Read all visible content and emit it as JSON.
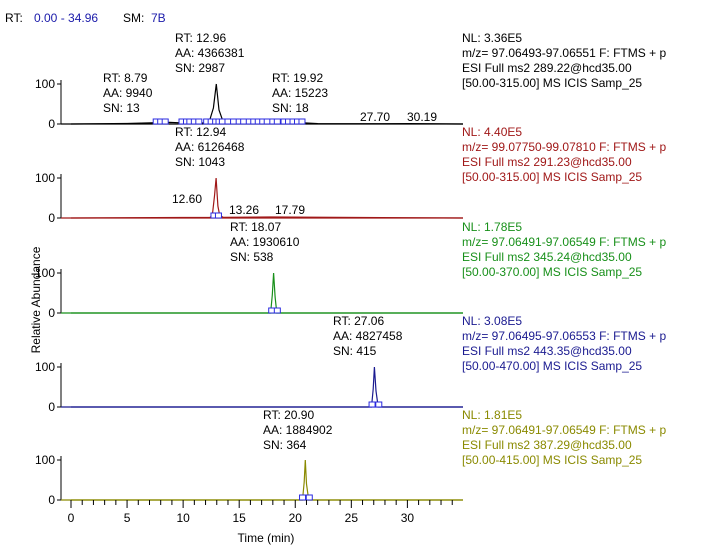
{
  "header": {
    "rt_prefix": "RT:",
    "rt_range": "0.00 - 34.96",
    "sm_prefix": "SM:",
    "sm_value": "7B"
  },
  "colors": {
    "blue_text": "#1a1aaa",
    "marker": "#2a2ae0",
    "smooth": "#40a040"
  },
  "chart_data": {
    "type": "line",
    "title": "",
    "xlabel": "Time (min)",
    "ylabel": "Relative Abundance",
    "xlim": [
      0,
      34.96
    ],
    "xticks": [
      0,
      5,
      10,
      15,
      20,
      25,
      30
    ],
    "ylim": [
      0,
      100
    ],
    "yticks": [
      0,
      100
    ],
    "panels": [
      {
        "color": "#000000",
        "header": [
          "NL: 3.36E5",
          "m/z= 97.06493-97.06551 F: FTMS + p",
          "ESI Full ms2 289.22@hcd35.00",
          "[50.00-315.00]  MS  ICIS Samp_25"
        ],
        "points": [
          [
            0,
            0
          ],
          [
            5.0,
            1.2
          ],
          [
            8.79,
            4.0
          ],
          [
            10.5,
            2.0
          ],
          [
            12.3,
            3.0
          ],
          [
            12.7,
            40
          ],
          [
            12.96,
            100
          ],
          [
            13.2,
            35
          ],
          [
            13.6,
            3
          ],
          [
            15.5,
            2.0
          ],
          [
            19.92,
            4.0
          ],
          [
            22,
            1.0
          ],
          [
            27.7,
            0.8
          ],
          [
            30.19,
            1.0
          ],
          [
            34.96,
            0
          ]
        ],
        "markers": [
          7.6,
          8.0,
          8.4,
          9.9,
          10.3,
          10.6,
          11.0,
          11.4,
          12.1,
          12.5,
          12.9,
          13.2,
          13.5,
          14.0,
          14.5,
          15.0,
          15.4,
          15.9,
          16.3,
          16.7,
          17.1,
          17.5,
          18.0,
          18.4,
          19.0,
          19.4,
          19.8,
          20.2,
          20.6
        ],
        "peaks": [
          {
            "rt": "RT: 8.79",
            "aa": "AA: 9940",
            "sn": "SN: 13"
          },
          {
            "rt": "RT: 12.96",
            "aa": "AA: 4366381",
            "sn": "SN: 2987"
          },
          {
            "rt": "RT: 19.92",
            "aa": "AA: 15223",
            "sn": "SN: 18"
          }
        ],
        "extra": [
          "27.70",
          "30.19"
        ]
      },
      {
        "color": "#a01818",
        "header": [
          "NL: 4.40E5",
          "m/z= 99.07750-99.07810 F: FTMS + p",
          "ESI Full ms2 291.23@hcd35.00",
          "[50.00-315.00]  MS  ICIS Samp_25"
        ],
        "points": [
          [
            0,
            0
          ],
          [
            12.4,
            1.5
          ],
          [
            12.6,
            6
          ],
          [
            12.8,
            55
          ],
          [
            12.94,
            100
          ],
          [
            13.1,
            30
          ],
          [
            13.26,
            6
          ],
          [
            13.6,
            1.5
          ],
          [
            17.79,
            2.5
          ],
          [
            34.96,
            0
          ]
        ],
        "markers": [
          12.75,
          13.15
        ],
        "peaks": [
          {
            "rt": "RT: 12.94",
            "aa": "AA: 6126468",
            "sn": "SN: 1043"
          }
        ],
        "extra": [
          "12.60",
          "13.26",
          "17.79"
        ]
      },
      {
        "color": "#18901a",
        "header": [
          "NL: 1.78E5",
          "m/z= 97.06491-97.06549 F: FTMS + p",
          "ESI Full ms2 345.24@hcd35.00",
          "[50.00-370.00]  MS  ICIS Samp_25"
        ],
        "points": [
          [
            0,
            0
          ],
          [
            17.8,
            0
          ],
          [
            17.95,
            45
          ],
          [
            18.07,
            100
          ],
          [
            18.2,
            40
          ],
          [
            18.35,
            0
          ],
          [
            34.96,
            0
          ]
        ],
        "markers": [
          17.9,
          18.4
        ],
        "peaks": [
          {
            "rt": "RT: 18.07",
            "aa": "AA: 1930610",
            "sn": "SN: 538"
          }
        ],
        "extra": []
      },
      {
        "color": "#1a1a90",
        "header": [
          "NL: 3.08E5",
          "m/z= 97.06495-97.06553 F: FTMS + p",
          "ESI Full ms2 443.35@hcd35.00",
          "[50.00-470.00]  MS  ICIS Samp_25"
        ],
        "points": [
          [
            0,
            0
          ],
          [
            26.8,
            0
          ],
          [
            26.95,
            45
          ],
          [
            27.06,
            100
          ],
          [
            27.2,
            40
          ],
          [
            27.4,
            0
          ],
          [
            34.96,
            0
          ]
        ],
        "markers": [
          26.85,
          27.45
        ],
        "peaks": [
          {
            "rt": "RT: 27.06",
            "aa": "AA: 4827458",
            "sn": "SN: 415"
          }
        ],
        "extra": []
      },
      {
        "color": "#8a8a00",
        "header": [
          "NL: 1.81E5",
          "m/z= 97.06491-97.06549 F: FTMS + p",
          "ESI Full ms2 387.29@hcd35.00",
          "[50.00-415.00]  MS  ICIS Samp_25"
        ],
        "points": [
          [
            0,
            0
          ],
          [
            20.65,
            0
          ],
          [
            20.8,
            45
          ],
          [
            20.9,
            100
          ],
          [
            21.0,
            40
          ],
          [
            21.2,
            0
          ],
          [
            34.96,
            0
          ]
        ],
        "markers": [
          20.65,
          21.25
        ],
        "peaks": [
          {
            "rt": "RT: 20.90",
            "aa": "AA: 1884902",
            "sn": "SN: 364"
          }
        ],
        "extra": []
      }
    ]
  }
}
